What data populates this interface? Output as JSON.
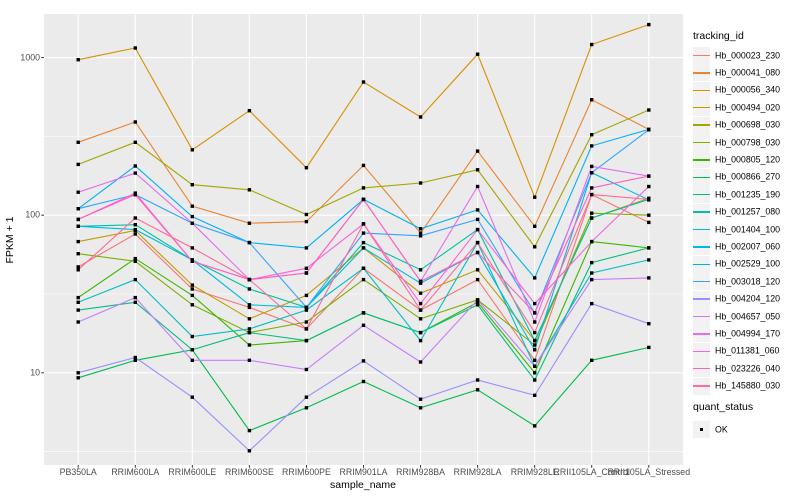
{
  "figure": {
    "background": "#FFFFFF",
    "panel_background": "#EBEBEB",
    "grid_color": "#FFFFFF",
    "axis_text_color": "#4D4D4D",
    "tick_mark_color": "#333333",
    "point_color": "#000000"
  },
  "chart_data": {
    "type": "line",
    "title": "",
    "xlabel": "sample_name",
    "ylabel": "FPKM + 1",
    "y_scale": "log10",
    "ylim": [
      2.6,
      1890
    ],
    "y_ticks": [
      10,
      100,
      1000
    ],
    "y_minor_ticks": [
      3.162,
      31.62,
      316.2
    ],
    "grid": true,
    "legend_position": "right",
    "legend_title": "tracking_id",
    "legend2_title": "quant_status",
    "legend2_items": [
      "OK"
    ],
    "point_marker": "black-square",
    "x_categories": [
      "PB350LA",
      "RRIM600LA",
      "RRIM600LE",
      "RRIM600SE",
      "RRIM600PE",
      "RRIM901LA",
      "RRIM928BA",
      "RRIM928LA",
      "RRIM928LE",
      "RRII105LA_Control",
      "RRII105LA_Stressed"
    ],
    "series": [
      {
        "name": "Hb_000023_230",
        "color": "#F8766D",
        "values": [
          47,
          76,
          34,
          26,
          19,
          46,
          25,
          39,
          12,
          135,
          90
        ]
      },
      {
        "name": "Hb_000041_080",
        "color": "#EA8331",
        "values": [
          290,
          390,
          114,
          89,
          91,
          207,
          77,
          255,
          85,
          540,
          350
        ]
      },
      {
        "name": "Hb_000056_340",
        "color": "#D89000",
        "values": [
          970,
          1150,
          260,
          460,
          200,
          700,
          420,
          1050,
          130,
          1210,
          1620
        ]
      },
      {
        "name": "Hb_000494_020",
        "color": "#C09B00",
        "values": [
          68,
          80,
          36,
          22,
          31,
          62,
          32,
          45,
          16,
          96,
          128
        ]
      },
      {
        "name": "Hb_000698_030",
        "color": "#A3A500",
        "values": [
          210,
          290,
          156,
          145,
          101,
          149,
          160,
          194,
          63,
          324,
          465
        ]
      },
      {
        "name": "Hb_000798_030",
        "color": "#7CAE00",
        "values": [
          57,
          51,
          27,
          18,
          21,
          39,
          22,
          29,
          15,
          103,
          100
        ]
      },
      {
        "name": "Hb_000805_120",
        "color": "#39B600",
        "values": [
          30,
          53,
          31,
          15,
          16,
          24,
          18,
          28,
          10,
          68,
          62
        ]
      },
      {
        "name": "Hb_000866_270",
        "color": "#00BB4E",
        "values": [
          9.3,
          12,
          14,
          4.3,
          6,
          8.8,
          6,
          7.8,
          4.6,
          12,
          14.5
        ]
      },
      {
        "name": "Hb_001235_190",
        "color": "#00BF7D",
        "values": [
          25,
          28,
          14,
          18,
          16,
          24,
          18,
          27,
          9,
          50,
          62
        ]
      },
      {
        "name": "Hb_001257_080",
        "color": "#00C1A3",
        "values": [
          85,
          87,
          52,
          34,
          26,
          67,
          45,
          81,
          16,
          96,
          126
        ]
      },
      {
        "name": "Hb_001404_100",
        "color": "#00BFC4",
        "values": [
          28,
          39,
          17,
          19,
          25,
          46,
          16,
          67,
          11,
          43,
          52
        ]
      },
      {
        "name": "Hb_002007_060",
        "color": "#00BAE0",
        "values": [
          85,
          81,
          52,
          27,
          26,
          62,
          37,
          58,
          14,
          186,
          125
        ]
      },
      {
        "name": "Hb_002529_100",
        "color": "#00B0F6",
        "values": [
          110,
          205,
          98,
          67,
          62,
          126,
          82,
          108,
          40,
          275,
          350
        ]
      },
      {
        "name": "Hb_003018_120",
        "color": "#35A2FF",
        "values": [
          110,
          135,
          89,
          67,
          26,
          77,
          74,
          94,
          24,
          186,
          348
        ]
      },
      {
        "name": "Hb_004204_120",
        "color": "#9590FF",
        "values": [
          10,
          12.5,
          7,
          3.2,
          7,
          11.9,
          6.8,
          9,
          7.2,
          27.5,
          20.5
        ]
      },
      {
        "name": "Hb_004657_050",
        "color": "#C77CFF",
        "values": [
          21,
          30,
          12,
          12,
          10.5,
          20,
          11.7,
          29,
          11,
          39,
          40
        ]
      },
      {
        "name": "Hb_004994_170",
        "color": "#E76BF3",
        "values": [
          140,
          185,
          89,
          39,
          43,
          126,
          38,
          152,
          21,
          204,
          177
        ]
      },
      {
        "name": "Hb_011381_060",
        "color": "#FA62DB",
        "values": [
          94,
          138,
          51,
          39,
          46,
          88,
          27.5,
          81,
          27.5,
          68,
          152
        ]
      },
      {
        "name": "Hb_023226_040",
        "color": "#FF62BC",
        "values": [
          94,
          135,
          51,
          39,
          43,
          126,
          38,
          58,
          24,
          149,
          177
        ]
      },
      {
        "name": "Hb_145880_030",
        "color": "#FF6A98",
        "values": [
          45,
          96,
          62,
          39,
          19,
          88,
          25,
          67,
          18,
          135,
          126
        ]
      }
    ]
  }
}
